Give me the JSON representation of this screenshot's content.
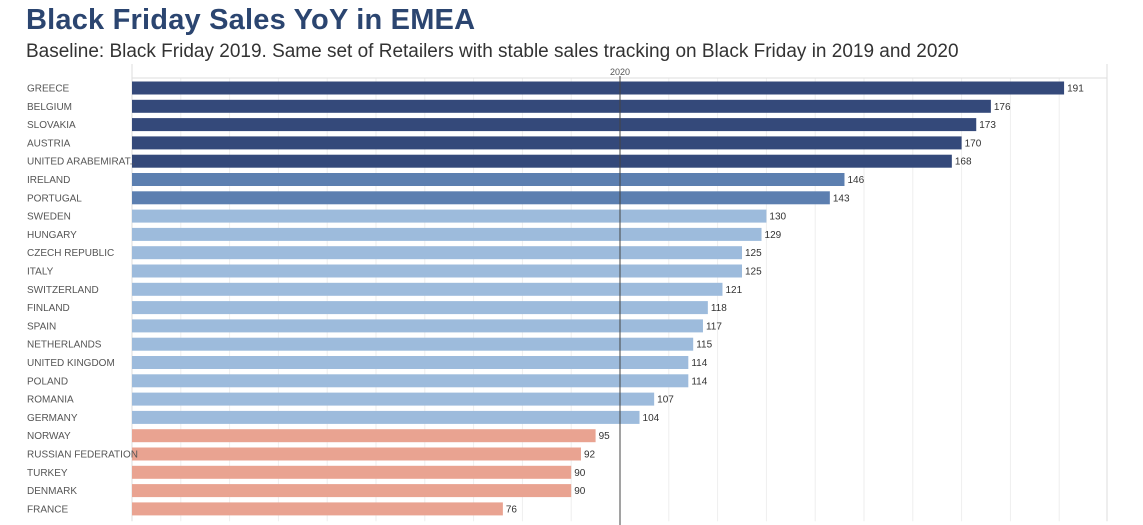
{
  "title": "Black Friday Sales YoY in EMEA",
  "subtitle": "Baseline: Black Friday 2019. Same set of Retailers with stable sales tracking on Black Friday in 2019 and 2020",
  "colors": {
    "title": "#2b4570",
    "high": "#34497a",
    "mid": "#5c7fb0",
    "light": "#9dbbdc",
    "below_baseline": "#e9a391",
    "baseline_line": "#444444",
    "grid": "#eeeeee"
  },
  "chart_data": {
    "type": "bar",
    "orientation": "horizontal",
    "reference_line": {
      "label": "2020",
      "value": 100
    },
    "xlim": [
      0,
      200
    ],
    "grid": true,
    "categories": [
      "GREECE",
      "BELGIUM",
      "SLOVAKIA",
      "AUSTRIA",
      "UNITED ARABEMIRAT..",
      "IRELAND",
      "PORTUGAL",
      "SWEDEN",
      "HUNGARY",
      "CZECH REPUBLIC",
      "ITALY",
      "SWITZERLAND",
      "FINLAND",
      "SPAIN",
      "NETHERLANDS",
      "UNITED KINGDOM",
      "POLAND",
      "ROMANIA",
      "GERMANY",
      "NORWAY",
      "RUSSIAN FEDERATION",
      "TURKEY",
      "DENMARK",
      "FRANCE"
    ],
    "values": [
      191,
      176,
      173,
      170,
      168,
      146,
      143,
      130,
      129,
      125,
      125,
      121,
      118,
      117,
      115,
      114,
      114,
      107,
      104,
      95,
      92,
      90,
      90,
      76
    ],
    "color_groups": [
      "high",
      "high",
      "high",
      "high",
      "high",
      "mid",
      "mid",
      "light",
      "light",
      "light",
      "light",
      "light",
      "light",
      "light",
      "light",
      "light",
      "light",
      "light",
      "light",
      "below_baseline",
      "below_baseline",
      "below_baseline",
      "below_baseline",
      "below_baseline"
    ]
  }
}
